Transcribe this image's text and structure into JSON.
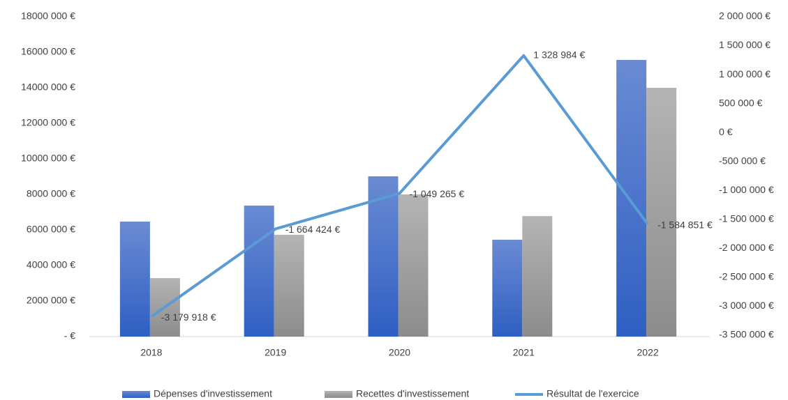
{
  "chart_data": {
    "type": "bar",
    "categories": [
      "2018",
      "2019",
      "2020",
      "2021",
      "2022"
    ],
    "series": [
      {
        "name": "Dépenses d'investissement",
        "type": "bar",
        "color": "#4472c4",
        "values": [
          6470000,
          7370000,
          9020000,
          5450000,
          15570000
        ]
      },
      {
        "name": "Recettes d'investissement",
        "type": "bar",
        "color": "#a5a5a5",
        "values": [
          3290000,
          5730000,
          8000000,
          6780000,
          14000000
        ]
      },
      {
        "name": "Résultat de l'exercice",
        "type": "line",
        "axis": "y2",
        "color": "#5b9bd5",
        "values": [
          -3179918,
          -1664424,
          -1049265,
          1328984,
          -1584851
        ],
        "value_labels": [
          "-3 179 918 €",
          "-1 664 424 €",
          "-1 049 265 €",
          "1 328 984 €",
          "-1 584 851 €"
        ]
      }
    ],
    "ylim": [
      0,
      18000000
    ],
    "yticks": [
      {
        "value": 0,
        "label": "-   €"
      },
      {
        "value": 2000000,
        "label": "2000 000 €"
      },
      {
        "value": 4000000,
        "label": "4000 000 €"
      },
      {
        "value": 6000000,
        "label": "6000 000 €"
      },
      {
        "value": 8000000,
        "label": "8000 000 €"
      },
      {
        "value": 10000000,
        "label": "10000 000 €"
      },
      {
        "value": 12000000,
        "label": "12000 000 €"
      },
      {
        "value": 14000000,
        "label": "14000 000 €"
      },
      {
        "value": 16000000,
        "label": "16000 000 €"
      },
      {
        "value": 18000000,
        "label": "18000 000 €"
      }
    ],
    "y2lim": [
      -3500000,
      2000000
    ],
    "y2ticks": [
      {
        "value": -3500000,
        "label": "-3 500 000 €"
      },
      {
        "value": -3000000,
        "label": "-3 000 000 €"
      },
      {
        "value": -2500000,
        "label": "-2 500 000 €"
      },
      {
        "value": -2000000,
        "label": "-2 000 000 €"
      },
      {
        "value": -1500000,
        "label": "-1 500 000 €"
      },
      {
        "value": -1000000,
        "label": "-1 000 000 €"
      },
      {
        "value": -500000,
        "label": "-500 000 €"
      },
      {
        "value": 0,
        "label": "0 €"
      },
      {
        "value": 500000,
        "label": "500 000 €"
      },
      {
        "value": 1000000,
        "label": "1 000 000 €"
      },
      {
        "value": 1500000,
        "label": "1 500 000 €"
      },
      {
        "value": 2000000,
        "label": "2 000 000 €"
      }
    ],
    "legend": "bottom"
  }
}
